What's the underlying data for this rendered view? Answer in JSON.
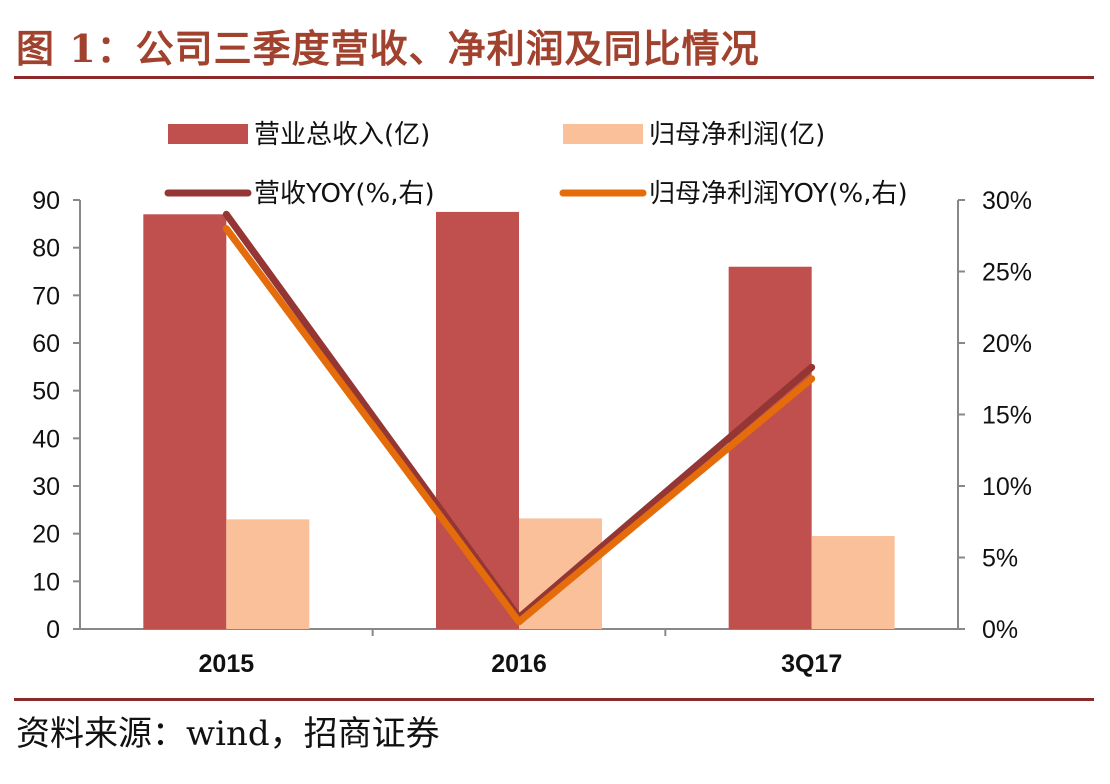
{
  "figure": {
    "title": "图 1：公司三季度营收、净利润及同比情况",
    "source": "资料来源：wind，招商证券"
  },
  "colors": {
    "revenue_bar": "#c0504d",
    "profit_bar": "#f9c09a",
    "revenue_yoy_line": "#943634",
    "profit_yoy_line": "#e46c0a",
    "title": "#a0422d",
    "rule": "#8b2a2a"
  },
  "chart_data": {
    "type": "bar",
    "categories": [
      "2015",
      "2016",
      "3Q17"
    ],
    "series": [
      {
        "name": "营业总收入(亿)",
        "kind": "bar",
        "axis": "left",
        "values": [
          87.0,
          87.5,
          76.0
        ]
      },
      {
        "name": "归母净利润(亿)",
        "kind": "bar",
        "axis": "left",
        "values": [
          23.0,
          23.2,
          19.5
        ]
      },
      {
        "name": "营收YOY(%,右)",
        "kind": "line",
        "axis": "right",
        "values": [
          29.0,
          0.8,
          18.3
        ]
      },
      {
        "name": "归母净利润YOY(%,右)",
        "kind": "line",
        "axis": "right",
        "values": [
          28.0,
          0.5,
          17.5
        ]
      }
    ],
    "y_left": {
      "min": 0,
      "max": 90,
      "step": 10,
      "ticks": [
        "0",
        "10",
        "20",
        "30",
        "40",
        "50",
        "60",
        "70",
        "80",
        "90"
      ]
    },
    "y_right": {
      "min": 0,
      "max": 30,
      "step": 5,
      "ticks": [
        "0%",
        "5%",
        "10%",
        "15%",
        "20%",
        "25%",
        "30%"
      ]
    },
    "legend": {
      "placement": "top",
      "columns": 2
    },
    "grid": false
  }
}
